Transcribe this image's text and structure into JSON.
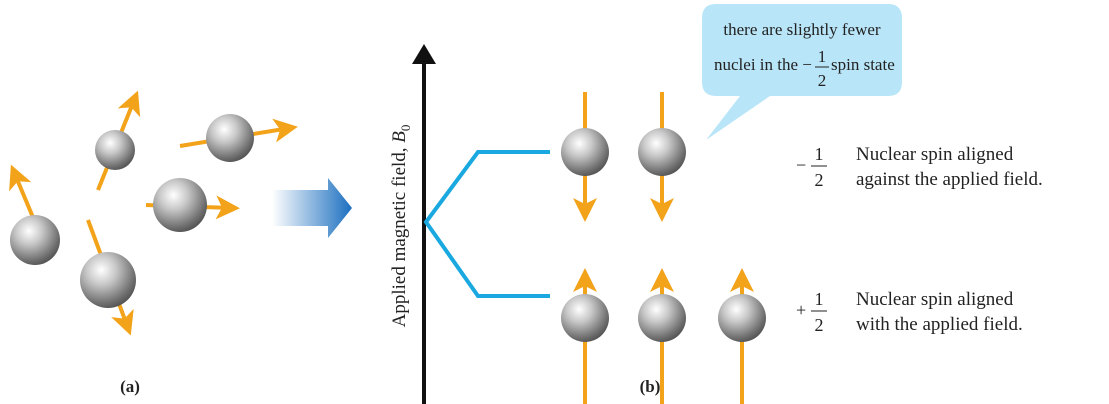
{
  "panels": {
    "a": {
      "label": "(a)"
    },
    "b": {
      "label": "(b)"
    }
  },
  "axis_label": {
    "text": "Applied magnetic field, ",
    "symbol": "B",
    "subscript": "0"
  },
  "callout": {
    "line1": "there are slightly fewer",
    "line2_before": "nuclei in the ",
    "sign": "−",
    "numerator": "1",
    "denominator": "2",
    "line2_after": " spin state"
  },
  "states": [
    {
      "sign": "−",
      "numerator": "1",
      "denominator": "2",
      "lines": [
        "Nuclear spin aligned",
        "against the applied field."
      ]
    },
    {
      "sign": "+",
      "numerator": "1",
      "denominator": "2",
      "lines": [
        "Nuclear spin aligned",
        "with the applied field."
      ]
    }
  ]
}
